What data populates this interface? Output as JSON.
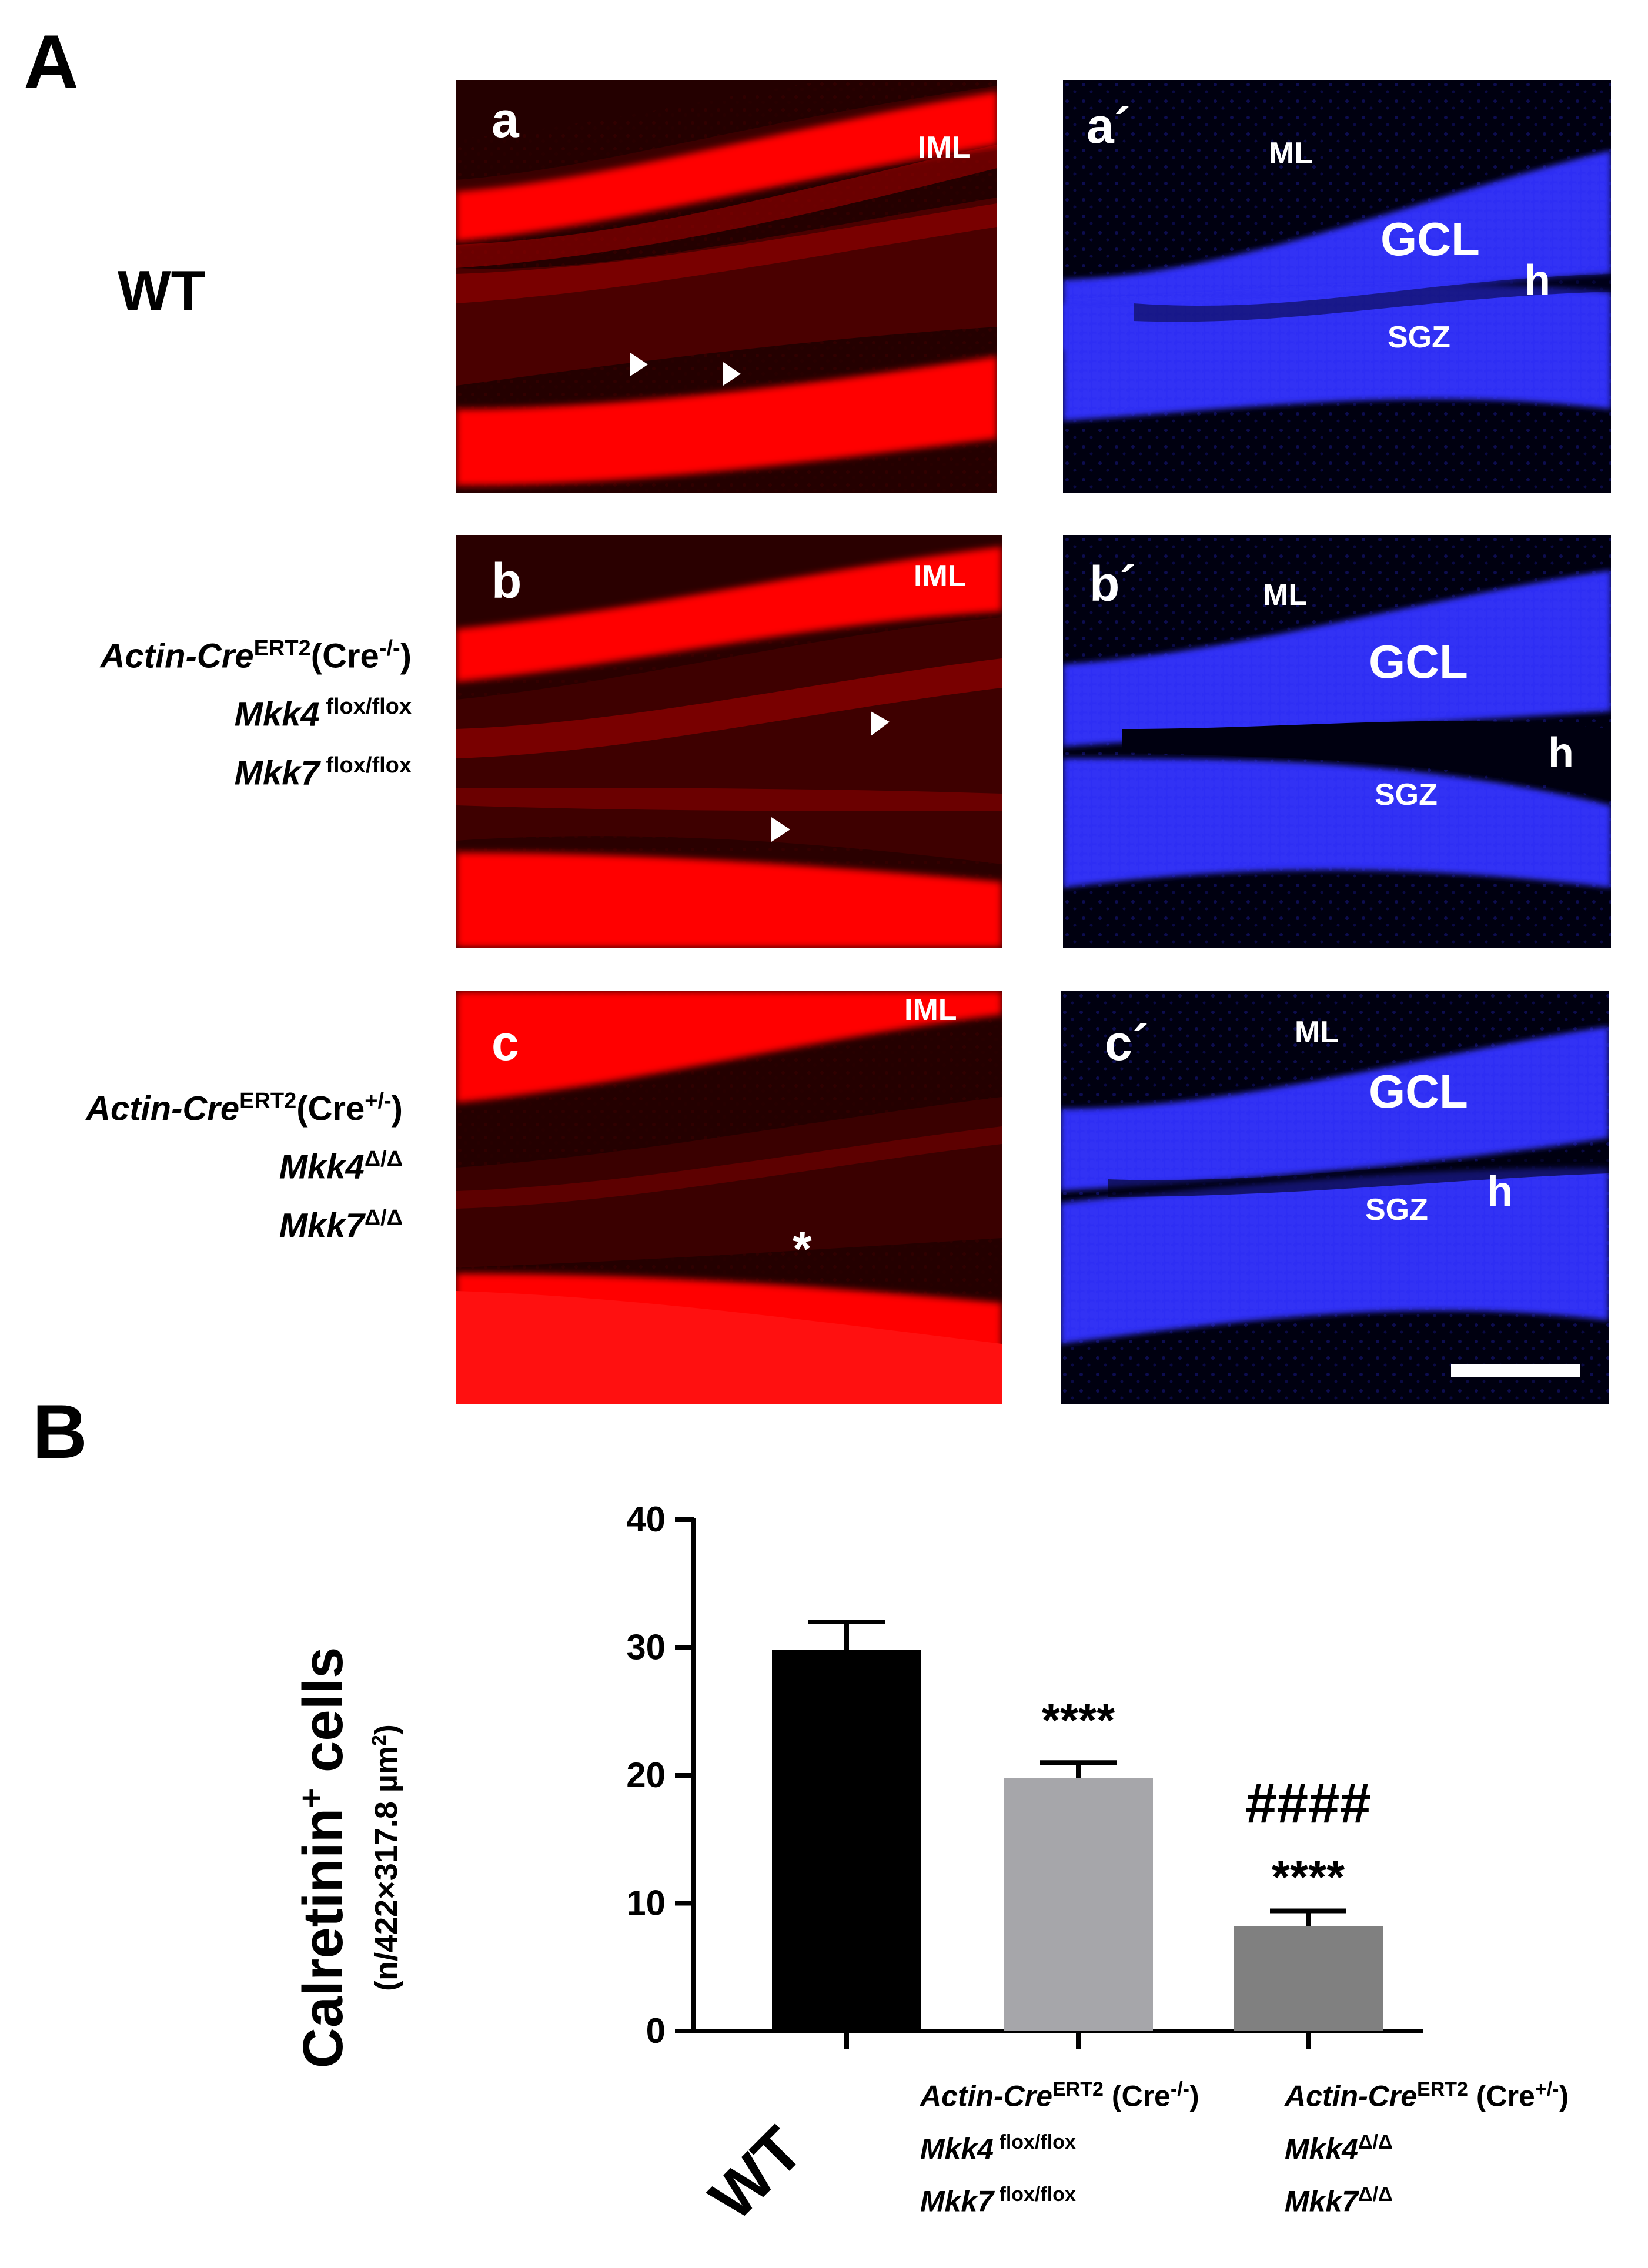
{
  "panel_A_label": "A",
  "panel_B_label": "B",
  "row_labels": {
    "wt": "WT",
    "row_b": {
      "line1_it": "Actin-Cre",
      "line1_sup": "ERT2",
      "line1_rest": "(Cre",
      "line1_rest_sup": "-/-",
      "line1_end": ")",
      "line2_it": "Mkk4",
      "line2_sup": " flox/flox",
      "line3_it": "Mkk7",
      "line3_sup": " flox/flox"
    },
    "row_c": {
      "line1_it": "Actin-Cre",
      "line1_sup": "ERT2",
      "line1_rest": "(Cre",
      "line1_rest_sup": "+/-",
      "line1_end": ")",
      "line2_it": "Mkk4",
      "line2_sup": "Δ/Δ",
      "line3_it": "Mkk7",
      "line3_sup": "Δ/Δ"
    }
  },
  "micrographs": {
    "a": {
      "letter": "a",
      "iml": "IML"
    },
    "b": {
      "letter": "b",
      "iml": "IML"
    },
    "c": {
      "letter": "c",
      "iml": "IML",
      "star": "*"
    },
    "a2": {
      "letter": "a´",
      "ml": "ML",
      "gcl": "GCL",
      "h": "h",
      "sgz": "SGZ"
    },
    "b2": {
      "letter": "b´",
      "ml": "ML",
      "gcl": "GCL",
      "h": "h",
      "sgz": "SGZ"
    },
    "c2": {
      "letter": "c´",
      "ml": "ML",
      "gcl": "GCL",
      "h": "h",
      "sgz": "SGZ"
    }
  },
  "colors": {
    "red_stain": "#ff0000",
    "blue_stain": "#2a2aff",
    "bar_wt": "#000000",
    "bar_b": "#a6a6aa",
    "bar_c": "#808080"
  },
  "chart_data": {
    "type": "bar",
    "title": "",
    "ylabel_main": "Calretinin",
    "ylabel_sup": "+",
    "ylabel_rest": " cells",
    "ylabel_sub": "(n/422×317.8 µm",
    "ylabel_sub_sup": "2",
    "ylabel_sub_end": ")",
    "ylim": [
      0,
      40
    ],
    "yticks": [
      "0",
      "10",
      "20",
      "30",
      "40"
    ],
    "categories": [
      "WT",
      "Actin-CreERT2 (Cre-/-) Mkk4 flox/flox Mkk7 flox/flox",
      "Actin-CreERT2 (Cre+/-) Mkk4Δ/Δ Mkk7Δ/Δ"
    ],
    "values": [
      29.8,
      19.8,
      8.2
    ],
    "errors": [
      2.2,
      1.2,
      1.2
    ],
    "annotations": [
      {
        "bar": 1,
        "text": "****"
      },
      {
        "bar": 2,
        "text": "####"
      },
      {
        "bar": 2,
        "text": "****"
      }
    ],
    "xlabels": {
      "wt": "WT",
      "b": {
        "l1_it": "Actin-Cre",
        "l1_sup": "ERT2",
        "l1_rest": " (Cre",
        "l1_rsup": "-/-",
        "l1_end": ")",
        "l2_it": "Mkk4",
        "l2_sup": " flox/flox",
        "l3_it": "Mkk7",
        "l3_sup": " flox/flox"
      },
      "c": {
        "l1_it": "Actin-Cre",
        "l1_sup": "ERT2",
        "l1_rest": " (Cre",
        "l1_rsup": "+/-",
        "l1_end": ")",
        "l2_it": "Mkk4",
        "l2_sup": "Δ/Δ",
        "l3_it": "Mkk7",
        "l3_sup": "Δ/Δ"
      }
    }
  }
}
